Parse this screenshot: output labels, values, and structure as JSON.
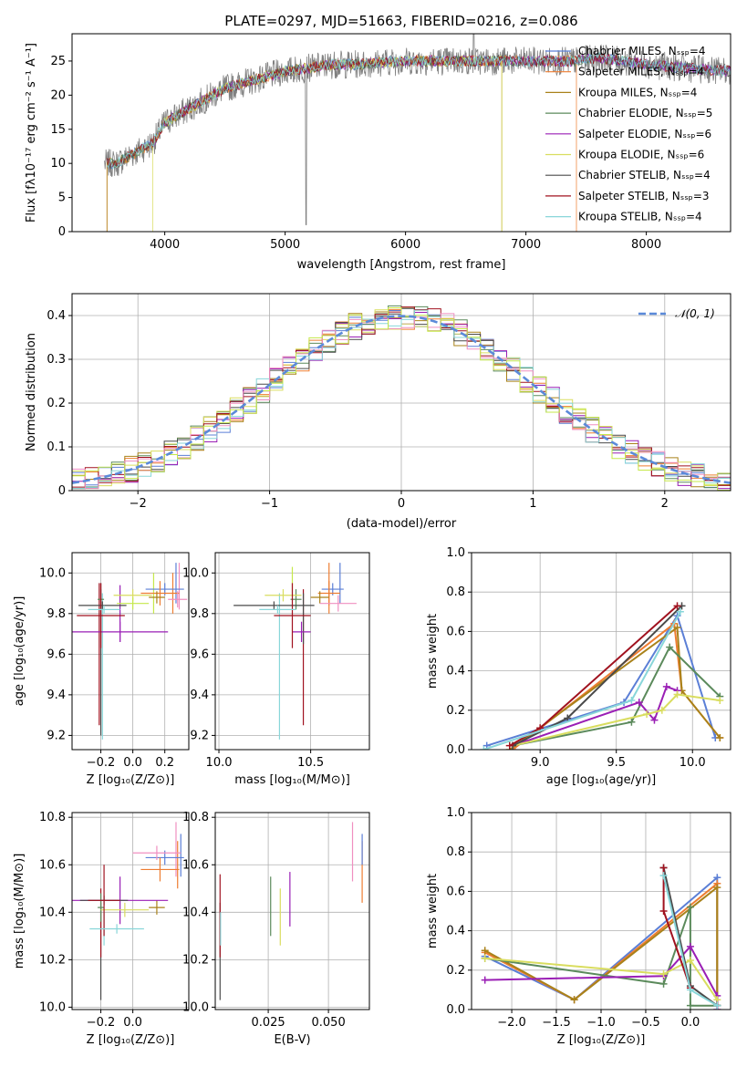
{
  "figure_title": "PLATE=0297, MJD=51663, FIBERID=0216, z=0.086",
  "colors": {
    "Chabrier MILES": "#5b7fd6",
    "Salpeter MILES": "#ee7d31",
    "Kroupa MILES": "#a9821a",
    "Chabrier ELODIE": "#5b8a5b",
    "Salpeter ELODIE": "#9a1fb5",
    "Kroupa ELODIE": "#d9dd5f",
    "Chabrier STELIB": "#4a4a4a",
    "Salpeter STELIB": "#a0121f",
    "Kroupa STELIB": "#88d6d9",
    "data": "#808080",
    "gaussian": "#5b8ad9",
    "pink": "#f08fc0",
    "lime": "#c5e84a"
  },
  "chart_data": [
    {
      "id": "spectrum",
      "type": "line",
      "title": "PLATE=0297, MJD=51663, FIBERID=0216, z=0.086",
      "xlabel": "wavelength [Angstrom, rest frame]",
      "ylabel": "Flux [fλ10⁻¹⁷ erg cm⁻² s⁻¹ A⁻¹]",
      "xlim": [
        3230,
        8700
      ],
      "ylim": [
        0,
        29
      ],
      "xticks": [
        4000,
        5000,
        6000,
        7000,
        8000
      ],
      "yticks": [
        0,
        5,
        10,
        15,
        20,
        25
      ],
      "legend_position": "right",
      "series": [
        {
          "name": "Chabrier MILES, N_SSP=4"
        },
        {
          "name": "Salpeter MILES, N_SSP=4"
        },
        {
          "name": "Kroupa MILES, N_SSP=4"
        },
        {
          "name": "Chabrier ELODIE, N_SSP=5"
        },
        {
          "name": "Salpeter ELODIE, N_SSP=6"
        },
        {
          "name": "Kroupa ELODIE, N_SSP=6"
        },
        {
          "name": "Chabrier STELIB, N_SSP=4"
        },
        {
          "name": "Salpeter STELIB, N_SSP=3"
        },
        {
          "name": "Kroupa STELIB, N_SSP=4"
        }
      ],
      "continuum": {
        "x": [
          3500,
          3600,
          3700,
          3800,
          3900,
          4000,
          4100,
          4200,
          4300,
          4400,
          4500,
          4600,
          4700,
          4800,
          4900,
          5000,
          5200,
          5400,
          5600,
          5800,
          6000,
          6200,
          6400,
          6600,
          6800,
          7000,
          7200,
          7400,
          7600,
          7800,
          8000,
          8300,
          8700
        ],
        "y": [
          10,
          10,
          11,
          12,
          13,
          16,
          17,
          18,
          19,
          20,
          21,
          21.5,
          22,
          22.5,
          23,
          23.5,
          24,
          24.5,
          24.5,
          24.8,
          25,
          25,
          25,
          25,
          25,
          25,
          25,
          25,
          25.5,
          25,
          24.5,
          24,
          23.5
        ]
      }
    },
    {
      "id": "residuals",
      "type": "step",
      "xlabel": "(data-model)/error",
      "ylabel": "Normed distribution",
      "xlim": [
        -2.5,
        2.5
      ],
      "ylim": [
        0,
        0.45
      ],
      "xticks": [
        -2,
        -1,
        0,
        1,
        2
      ],
      "yticks": [
        0.0,
        0.1,
        0.2,
        0.3,
        0.4
      ],
      "legend": [
        "𝒩(0, 1)"
      ],
      "gaussian": {
        "mean": 0,
        "sigma": 1
      }
    },
    {
      "id": "age_vs_Z",
      "type": "errorbar",
      "xlabel": "Z [log₁₀(Z/Z⊙)]",
      "ylabel": "age [log₁₀(age/yr)]",
      "xlim": [
        -0.38,
        0.35
      ],
      "ylim": [
        9.13,
        10.1
      ],
      "xticks": [
        -0.2,
        0.0,
        0.2
      ],
      "yticks": [
        9.2,
        9.4,
        9.6,
        9.8,
        10.0
      ],
      "points": [
        {
          "c": "Chabrier MILES",
          "x": 0.2,
          "xe": 0.12,
          "y": 9.92,
          "ye": 0.03
        },
        {
          "c": "Salpeter MILES",
          "x": 0.17,
          "xe": 0.12,
          "y": 9.9,
          "ye": 0.06
        },
        {
          "c": "Kroupa MILES",
          "x": 0.15,
          "xe": 0.05,
          "y": 9.88,
          "ye": 0.03
        },
        {
          "c": "Chabrier ELODIE",
          "x": -0.2,
          "xe": 0.02,
          "y": 9.87,
          "ye": 0.05
        },
        {
          "c": "Salpeter ELODIE",
          "x": -0.08,
          "xe": 0.3,
          "y": 9.71,
          "ye": 0.05
        },
        {
          "c": "Kroupa ELODIE",
          "x": 0.0,
          "xe": 0.12,
          "y": 9.89,
          "ye": 0.03
        },
        {
          "c": "Chabrier STELIB",
          "x": -0.19,
          "xe": 0.15,
          "y": 9.84,
          "ye": 0.02
        },
        {
          "c": "Salpeter STELIB",
          "x": -0.2,
          "xe": 0.15,
          "y": 9.79,
          "ye": 0.16
        },
        {
          "c": "Kroupa STELIB",
          "x": -0.18,
          "xe": 0.1,
          "y": 9.82,
          "ye": 0.02
        },
        {
          "c": "pink",
          "x": 0.28,
          "xe": 0.06,
          "y": 9.87,
          "ye": 0.04
        },
        {
          "c": "lime",
          "x": 0.0,
          "xe": 0.1,
          "y": 9.85,
          "ye": 0.03
        }
      ],
      "vlines": [
        {
          "c": "Chabrier STELIB",
          "x": -0.2,
          "y1": 9.2,
          "y2": 9.95
        },
        {
          "c": "Salpeter STELIB",
          "x": -0.21,
          "y1": 9.25,
          "y2": 9.95
        },
        {
          "c": "Kroupa STELIB",
          "x": -0.19,
          "y1": 9.18,
          "y2": 9.9
        },
        {
          "c": "Salpeter ELODIE",
          "x": -0.08,
          "y1": 9.66,
          "y2": 9.94
        },
        {
          "c": "Chabrier MILES",
          "x": 0.27,
          "y1": 9.85,
          "y2": 10.05
        },
        {
          "c": "Salpeter MILES",
          "x": 0.25,
          "y1": 9.8,
          "y2": 10.0
        },
        {
          "c": "lime",
          "x": 0.13,
          "y1": 9.8,
          "y2": 10.0
        },
        {
          "c": "pink",
          "x": 0.29,
          "y1": 9.82,
          "y2": 10.05
        }
      ]
    },
    {
      "id": "age_vs_mass",
      "type": "errorbar",
      "xlabel": "mass [log₁₀(M/M⊙)]",
      "xlim": [
        9.98,
        10.82
      ],
      "ylim": [
        9.13,
        10.1
      ],
      "xticks": [
        10.0,
        10.5
      ],
      "yticks": [
        9.2,
        9.4,
        9.6,
        9.8,
        10.0
      ],
      "points": [
        {
          "c": "Chabrier MILES",
          "x": 10.62,
          "xe": 0.06,
          "y": 9.92,
          "ye": 0.03
        },
        {
          "c": "Salpeter MILES",
          "x": 10.6,
          "xe": 0.06,
          "y": 9.9,
          "ye": 0.06
        },
        {
          "c": "Kroupa MILES",
          "x": 10.55,
          "xe": 0.05,
          "y": 9.88,
          "ye": 0.03
        },
        {
          "c": "Chabrier ELODIE",
          "x": 10.42,
          "xe": 0.03,
          "y": 9.87,
          "ye": 0.05
        },
        {
          "c": "Salpeter ELODIE",
          "x": 10.45,
          "xe": 0.05,
          "y": 9.71,
          "ye": 0.05
        },
        {
          "c": "Kroupa ELODIE",
          "x": 10.35,
          "xe": 0.1,
          "y": 9.89,
          "ye": 0.03
        },
        {
          "c": "Chabrier STELIB",
          "x": 10.3,
          "xe": 0.22,
          "y": 9.84,
          "ye": 0.02
        },
        {
          "c": "Salpeter STELIB",
          "x": 10.4,
          "xe": 0.1,
          "y": 9.79,
          "ye": 0.16
        },
        {
          "c": "Kroupa STELIB",
          "x": 10.32,
          "xe": 0.1,
          "y": 9.82,
          "ye": 0.02
        },
        {
          "c": "pink",
          "x": 10.65,
          "xe": 0.1,
          "y": 9.85,
          "ye": 0.04
        }
      ],
      "vlines": [
        {
          "c": "Kroupa STELIB",
          "x": 10.33,
          "y1": 9.18,
          "y2": 9.9
        },
        {
          "c": "Salpeter STELIB",
          "x": 10.46,
          "y1": 9.25,
          "y2": 9.92
        },
        {
          "c": "Chabrier STELIB",
          "x": 10.46,
          "y1": 9.65,
          "y2": 9.9
        },
        {
          "c": "lime",
          "x": 10.4,
          "y1": 9.88,
          "y2": 10.03
        },
        {
          "c": "Salpeter MILES",
          "x": 10.6,
          "y1": 9.8,
          "y2": 10.05
        },
        {
          "c": "Chabrier MILES",
          "x": 10.66,
          "y1": 9.85,
          "y2": 10.05
        }
      ]
    },
    {
      "id": "weight_vs_age",
      "type": "line",
      "xlabel": "age [log₁₀(age/yr)]",
      "ylabel": "mass weight",
      "xlim": [
        8.55,
        10.25
      ],
      "ylim": [
        0,
        1
      ],
      "xticks": [
        9.0,
        9.5,
        10.0
      ],
      "yticks": [
        0.0,
        0.2,
        0.4,
        0.6,
        0.8,
        1.0
      ],
      "series": [
        {
          "c": "Chabrier MILES",
          "x": [
            8.65,
            9.55,
            9.9,
            10.15
          ],
          "y": [
            0.02,
            0.24,
            0.68,
            0.06
          ]
        },
        {
          "c": "Salpeter MILES",
          "x": [
            8.82,
            9.88,
            9.93,
            10.18
          ],
          "y": [
            0.0,
            0.64,
            0.3,
            0.06
          ]
        },
        {
          "c": "Kroupa MILES",
          "x": [
            8.8,
            9.9,
            9.93,
            10.18
          ],
          "y": [
            0.0,
            0.62,
            0.3,
            0.06
          ]
        },
        {
          "c": "Chabrier ELODIE",
          "x": [
            8.82,
            9.6,
            9.85,
            10.18
          ],
          "y": [
            0.02,
            0.14,
            0.52,
            0.27
          ]
        },
        {
          "c": "Salpeter ELODIE",
          "x": [
            8.82,
            9.65,
            9.75,
            9.83,
            9.9
          ],
          "y": [
            0.02,
            0.24,
            0.15,
            0.32,
            0.3
          ]
        },
        {
          "c": "Kroupa ELODIE",
          "x": [
            8.82,
            9.7,
            9.8,
            9.9,
            10.18
          ],
          "y": [
            0.02,
            0.18,
            0.2,
            0.28,
            0.25
          ]
        },
        {
          "c": "Chabrier STELIB",
          "x": [
            8.82,
            9.18,
            9.93
          ],
          "y": [
            0.02,
            0.16,
            0.73
          ]
        },
        {
          "c": "Salpeter STELIB",
          "x": [
            8.8,
            9.0,
            9.9
          ],
          "y": [
            0.02,
            0.11,
            0.73
          ]
        },
        {
          "c": "Kroupa STELIB",
          "x": [
            8.63,
            9.6,
            9.92
          ],
          "y": [
            0.0,
            0.25,
            0.7
          ]
        }
      ]
    },
    {
      "id": "mass_vs_Z",
      "type": "errorbar",
      "xlabel": "Z [log₁₀(Z/Z⊙)]",
      "ylabel": "mass [log₁₀(M/M⊙)]",
      "xlim": [
        -0.38,
        0.35
      ],
      "ylim": [
        9.99,
        10.82
      ],
      "xticks": [
        -0.2,
        0.0
      ],
      "yticks": [
        10.0,
        10.2,
        10.4,
        10.6,
        10.8
      ],
      "points": [
        {
          "c": "Chabrier MILES",
          "x": 0.2,
          "xe": 0.12,
          "y": 10.63,
          "ye": 0.03
        },
        {
          "c": "Salpeter MILES",
          "x": 0.17,
          "xe": 0.12,
          "y": 10.58,
          "ye": 0.05
        },
        {
          "c": "Kroupa MILES",
          "x": 0.15,
          "xe": 0.05,
          "y": 10.42,
          "ye": 0.03
        },
        {
          "c": "Chabrier ELODIE",
          "x": -0.2,
          "xe": 0.02,
          "y": 10.42,
          "ye": 0.06
        },
        {
          "c": "Salpeter ELODIE",
          "x": -0.08,
          "xe": 0.3,
          "y": 10.45,
          "ye": 0.1
        },
        {
          "c": "Kroupa ELODIE",
          "x": -0.05,
          "xe": 0.15,
          "y": 10.41,
          "ye": 0.03
        },
        {
          "c": "Chabrier STELIB",
          "x": -0.18,
          "xe": 0.15,
          "y": 10.45,
          "ye": 0.02
        },
        {
          "c": "Salpeter STELIB",
          "x": -0.18,
          "xe": 0.1,
          "y": 10.45,
          "ye": 0.15
        },
        {
          "c": "Kroupa STELIB",
          "x": -0.1,
          "xe": 0.17,
          "y": 10.33,
          "ye": 0.02
        },
        {
          "c": "pink",
          "x": 0.15,
          "xe": 0.15,
          "y": 10.65,
          "ye": 0.03
        }
      ],
      "vlines": [
        {
          "c": "Chabrier STELIB",
          "x": -0.2,
          "y1": 10.03,
          "y2": 10.44
        },
        {
          "c": "Salpeter STELIB",
          "x": -0.2,
          "y1": 10.21,
          "y2": 10.5
        },
        {
          "c": "Kroupa STELIB",
          "x": -0.18,
          "y1": 10.26,
          "y2": 10.4
        },
        {
          "c": "pink",
          "x": 0.27,
          "y1": 10.55,
          "y2": 10.78
        },
        {
          "c": "Chabrier MILES",
          "x": 0.3,
          "y1": 10.55,
          "y2": 10.73
        },
        {
          "c": "Salpeter MILES",
          "x": 0.28,
          "y1": 10.5,
          "y2": 10.7
        }
      ]
    },
    {
      "id": "mass_vs_EBV",
      "type": "errorbar",
      "xlabel": "E(B-V)",
      "xlim": [
        0.003,
        0.067
      ],
      "ylim": [
        9.99,
        10.82
      ],
      "xticks": [
        0.025,
        0.05
      ],
      "yticks": [
        10.0,
        10.2,
        10.4,
        10.6,
        10.8
      ],
      "vlines": [
        {
          "c": "Chabrier STELIB",
          "x": 0.005,
          "y1": 10.03,
          "y2": 10.44
        },
        {
          "c": "Salpeter STELIB",
          "x": 0.005,
          "y1": 10.21,
          "y2": 10.56
        },
        {
          "c": "Kroupa STELIB",
          "x": 0.0052,
          "y1": 10.26,
          "y2": 10.4
        },
        {
          "c": "Chabrier ELODIE",
          "x": 0.026,
          "y1": 10.3,
          "y2": 10.55
        },
        {
          "c": "Kroupa ELODIE",
          "x": 0.03,
          "y1": 10.26,
          "y2": 10.5
        },
        {
          "c": "Salpeter ELODIE",
          "x": 0.034,
          "y1": 10.34,
          "y2": 10.57
        },
        {
          "c": "pink",
          "x": 0.06,
          "y1": 10.53,
          "y2": 10.78
        },
        {
          "c": "Salpeter MILES",
          "x": 0.064,
          "y1": 10.44,
          "y2": 10.7
        },
        {
          "c": "Chabrier MILES",
          "x": 0.064,
          "y1": 10.6,
          "y2": 10.73
        }
      ]
    },
    {
      "id": "weight_vs_Z",
      "type": "line",
      "xlabel": "Z [log₁₀(Z/Z⊙)]",
      "ylabel": "mass weight",
      "xlim": [
        -2.45,
        0.45
      ],
      "ylim": [
        0,
        1
      ],
      "xticks": [
        -2.0,
        -1.5,
        -1.0,
        -0.5,
        0.0
      ],
      "yticks": [
        0.0,
        0.2,
        0.4,
        0.6,
        0.8,
        1.0
      ],
      "series": [
        {
          "c": "Chabrier MILES",
          "x": [
            -2.3,
            -1.3,
            0.3,
            0.3
          ],
          "y": [
            0.27,
            0.05,
            0.67,
            0.02
          ]
        },
        {
          "c": "Salpeter MILES",
          "x": [
            -2.3,
            -1.3,
            0.3,
            0.3
          ],
          "y": [
            0.29,
            0.05,
            0.64,
            0.02
          ]
        },
        {
          "c": "Kroupa MILES",
          "x": [
            -2.3,
            -1.3,
            0.3,
            0.3
          ],
          "y": [
            0.3,
            0.05,
            0.62,
            0.02
          ]
        },
        {
          "c": "Chabrier ELODIE",
          "x": [
            -2.3,
            -0.3,
            0.0,
            0.0,
            0.3
          ],
          "y": [
            0.26,
            0.13,
            0.52,
            0.02,
            0.02
          ]
        },
        {
          "c": "Salpeter ELODIE",
          "x": [
            -2.3,
            -0.3,
            0.0,
            0.3,
            0.3
          ],
          "y": [
            0.15,
            0.17,
            0.32,
            0.07,
            0.0
          ]
        },
        {
          "c": "Kroupa ELODIE",
          "x": [
            -2.3,
            -0.3,
            0.0,
            0.3
          ],
          "y": [
            0.26,
            0.18,
            0.25,
            0.05
          ]
        },
        {
          "c": "Chabrier STELIB",
          "x": [
            -0.3,
            0.0,
            0.3
          ],
          "y": [
            0.72,
            0.12,
            0.02
          ]
        },
        {
          "c": "Salpeter STELIB",
          "x": [
            -0.3,
            -0.3,
            0.0
          ],
          "y": [
            0.72,
            0.5,
            0.11
          ]
        },
        {
          "c": "Kroupa STELIB",
          "x": [
            -0.3,
            0.0,
            0.3
          ],
          "y": [
            0.68,
            0.1,
            0.02
          ]
        }
      ]
    }
  ]
}
